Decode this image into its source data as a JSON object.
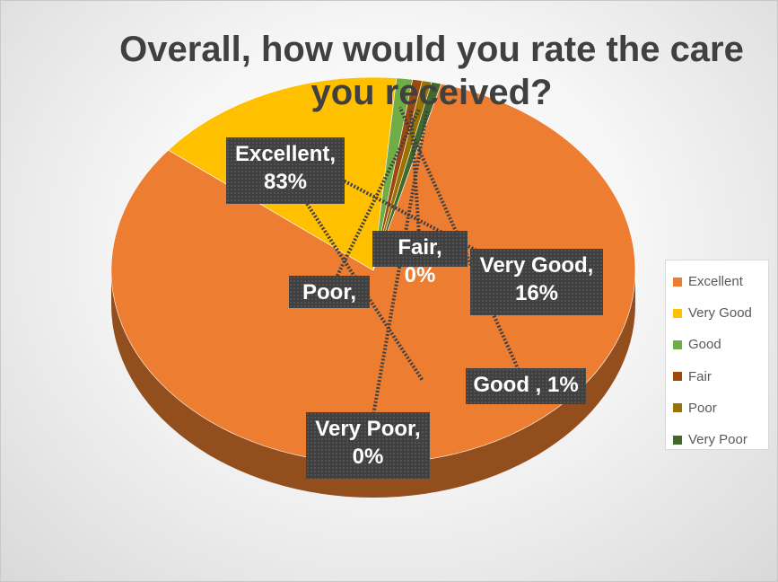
{
  "chart_data": {
    "type": "pie",
    "title": "Overall, how would you rate the care you received?",
    "categories": [
      "Excellent",
      "Very Good",
      "Good",
      "Fair",
      "Poor",
      "Very Poor"
    ],
    "values": [
      83,
      16,
      1,
      0,
      0,
      0
    ],
    "colors": [
      "#ED7D31",
      "#FFC000",
      "#70AD47",
      "#9E480E",
      "#997300",
      "#43682B"
    ],
    "labels": [
      {
        "lines": [
          "Excellent,",
          "83%"
        ]
      },
      {
        "lines": [
          "Very Good,",
          "16%"
        ]
      },
      {
        "lines": [
          "Good , 1%"
        ]
      },
      {
        "lines": [
          "Fair, 0%"
        ]
      },
      {
        "lines": [
          "Poor,"
        ]
      },
      {
        "lines": [
          "Very Poor,",
          "0%"
        ]
      }
    ],
    "legend_position": "right",
    "three_d": true
  }
}
